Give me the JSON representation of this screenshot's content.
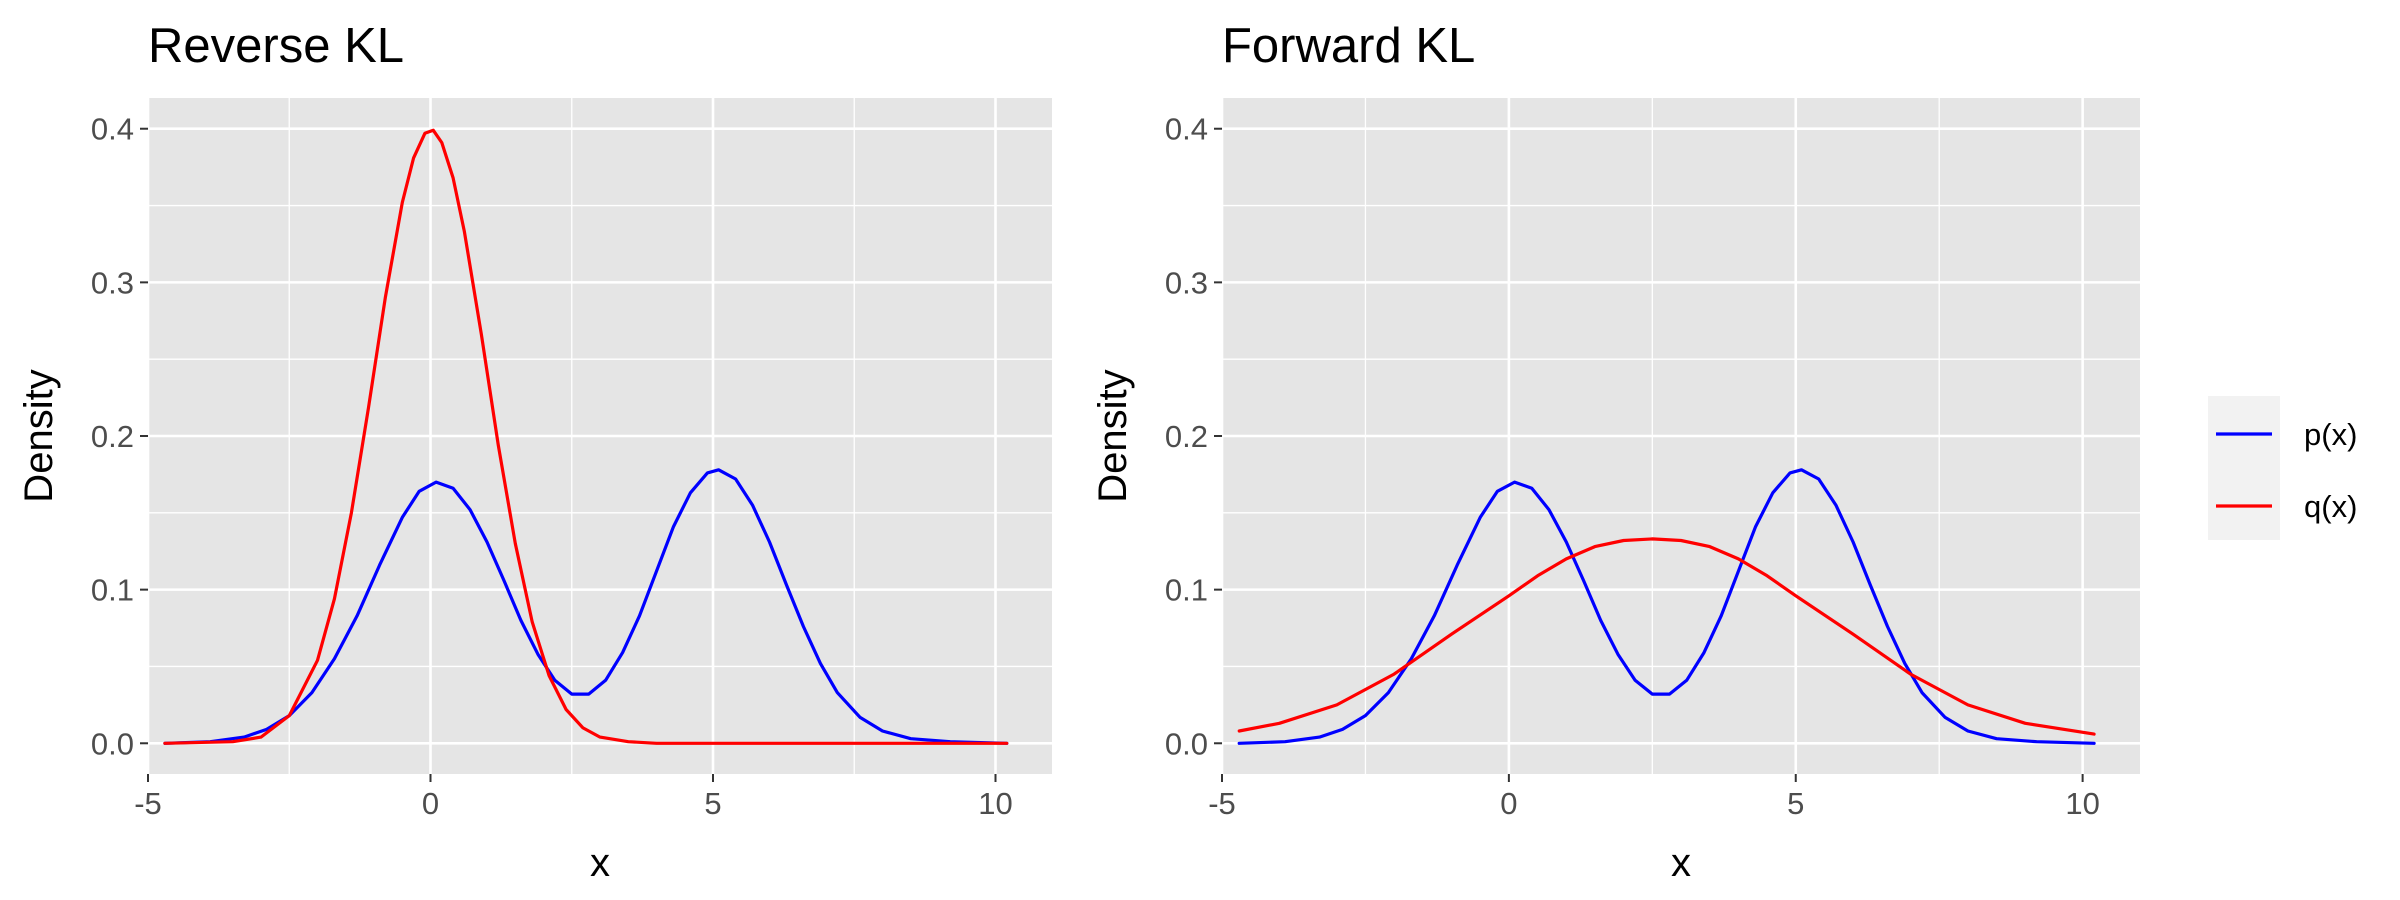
{
  "chart_data": [
    {
      "type": "line",
      "title": "Reverse KL",
      "xlabel": "x",
      "ylabel": "Density",
      "xlim": [
        -5,
        11
      ],
      "ylim": [
        -0.02,
        0.42
      ],
      "x_ticks": [
        -5,
        0,
        5,
        10
      ],
      "x_tick_labels": [
        "-5",
        "0",
        "5",
        "10"
      ],
      "y_ticks": [
        0.0,
        0.1,
        0.2,
        0.3,
        0.4
      ],
      "y_tick_labels": [
        "0.0",
        "0.1",
        "0.2",
        "0.3",
        "0.4"
      ],
      "grid": true,
      "x_range_plotted": [
        -4.7,
        10.2
      ],
      "series": [
        {
          "name": "p(x)",
          "color": "#0000ff",
          "description": "mixture of two Gaussians",
          "x": [
            -4.7,
            -3.9,
            -3.3,
            -2.9,
            -2.5,
            -2.1,
            -1.7,
            -1.3,
            -0.9,
            -0.5,
            -0.2,
            0.1,
            0.4,
            0.7,
            1.0,
            1.3,
            1.6,
            1.9,
            2.2,
            2.5,
            2.8,
            3.1,
            3.4,
            3.7,
            4.0,
            4.3,
            4.6,
            4.9,
            5.1,
            5.4,
            5.7,
            6.0,
            6.3,
            6.6,
            6.9,
            7.2,
            7.6,
            8.0,
            8.5,
            9.2,
            10.2
          ],
          "y": [
            0.0,
            0.001,
            0.004,
            0.009,
            0.018,
            0.033,
            0.055,
            0.083,
            0.116,
            0.147,
            0.164,
            0.17,
            0.166,
            0.152,
            0.131,
            0.106,
            0.08,
            0.058,
            0.041,
            0.032,
            0.032,
            0.041,
            0.059,
            0.083,
            0.112,
            0.141,
            0.163,
            0.176,
            0.178,
            0.172,
            0.155,
            0.131,
            0.103,
            0.076,
            0.052,
            0.033,
            0.017,
            0.008,
            0.003,
            0.001,
            0.0
          ]
        },
        {
          "name": "q(x)",
          "color": "#ff0000",
          "description": "narrow Gaussian centred near 0",
          "x": [
            -4.7,
            -3.5,
            -3.0,
            -2.5,
            -2.0,
            -1.7,
            -1.4,
            -1.1,
            -0.8,
            -0.5,
            -0.3,
            -0.1,
            0.05,
            0.2,
            0.4,
            0.6,
            0.9,
            1.2,
            1.5,
            1.8,
            2.1,
            2.4,
            2.7,
            3.0,
            3.5,
            4.0,
            10.2
          ],
          "y": [
            0.0,
            0.001,
            0.004,
            0.018,
            0.054,
            0.094,
            0.15,
            0.218,
            0.29,
            0.352,
            0.381,
            0.397,
            0.399,
            0.391,
            0.368,
            0.333,
            0.266,
            0.194,
            0.13,
            0.079,
            0.044,
            0.022,
            0.01,
            0.004,
            0.001,
            0.0,
            0.0
          ]
        }
      ]
    },
    {
      "type": "line",
      "title": "Forward KL",
      "xlabel": "x",
      "ylabel": "Density",
      "xlim": [
        -5,
        11
      ],
      "ylim": [
        -0.02,
        0.42
      ],
      "x_ticks": [
        -5,
        0,
        5,
        10
      ],
      "x_tick_labels": [
        "-5",
        "0",
        "5",
        "10"
      ],
      "y_ticks": [
        0.0,
        0.1,
        0.2,
        0.3,
        0.4
      ],
      "y_tick_labels": [
        "0.0",
        "0.1",
        "0.2",
        "0.3",
        "0.4"
      ],
      "grid": true,
      "x_range_plotted": [
        -4.7,
        10.2
      ],
      "series": [
        {
          "name": "p(x)",
          "color": "#0000ff",
          "description": "mixture of two Gaussians",
          "x": [
            -4.7,
            -3.9,
            -3.3,
            -2.9,
            -2.5,
            -2.1,
            -1.7,
            -1.3,
            -0.9,
            -0.5,
            -0.2,
            0.1,
            0.4,
            0.7,
            1.0,
            1.3,
            1.6,
            1.9,
            2.2,
            2.5,
            2.8,
            3.1,
            3.4,
            3.7,
            4.0,
            4.3,
            4.6,
            4.9,
            5.1,
            5.4,
            5.7,
            6.0,
            6.3,
            6.6,
            6.9,
            7.2,
            7.6,
            8.0,
            8.5,
            9.2,
            10.2
          ],
          "y": [
            0.0,
            0.001,
            0.004,
            0.009,
            0.018,
            0.033,
            0.055,
            0.083,
            0.116,
            0.147,
            0.164,
            0.17,
            0.166,
            0.152,
            0.131,
            0.106,
            0.08,
            0.058,
            0.041,
            0.032,
            0.032,
            0.041,
            0.059,
            0.083,
            0.112,
            0.141,
            0.163,
            0.176,
            0.178,
            0.172,
            0.155,
            0.131,
            0.103,
            0.076,
            0.052,
            0.033,
            0.017,
            0.008,
            0.003,
            0.001,
            0.0
          ]
        },
        {
          "name": "q(x)",
          "color": "#ff0000",
          "description": "wide Gaussian centred near 2.5",
          "x": [
            -4.7,
            -4.0,
            -3.0,
            -2.0,
            -1.0,
            0.0,
            0.5,
            1.0,
            1.5,
            2.0,
            2.5,
            3.0,
            3.5,
            4.0,
            4.5,
            5.0,
            6.0,
            7.0,
            8.0,
            9.0,
            10.2
          ],
          "y": [
            0.008,
            0.013,
            0.025,
            0.045,
            0.071,
            0.096,
            0.109,
            0.12,
            0.128,
            0.132,
            0.133,
            0.132,
            0.128,
            0.12,
            0.109,
            0.096,
            0.071,
            0.045,
            0.025,
            0.013,
            0.006
          ]
        }
      ]
    }
  ],
  "legend": {
    "placement": "right",
    "items": [
      {
        "label": "p(x)",
        "color": "#0000ff"
      },
      {
        "label": "q(x)",
        "color": "#ff0000"
      }
    ]
  },
  "style": {
    "panel_background": "#e5e5e5",
    "grid_color": "#ffffff",
    "tick_label_color": "#4d4d4d",
    "legend_background": "#f2f2f2"
  }
}
